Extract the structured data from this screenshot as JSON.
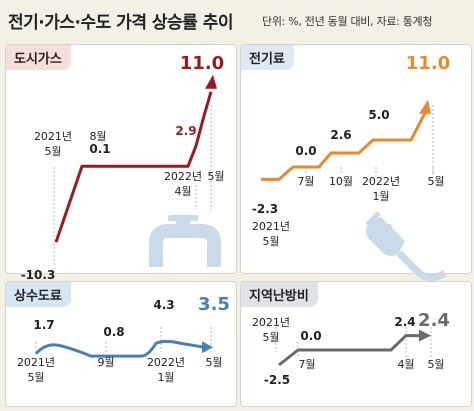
{
  "header": {
    "title": "전기·가스·수도 가격 상승률 추이",
    "note": "단위: %, 전년 동월 대비, 자료: 통계청"
  },
  "colors": {
    "gas": "#9c1a1c",
    "electricity": "#e8892e",
    "water": "#4a7fb5",
    "heating": "#6a6a6a"
  },
  "icons": [
    "faucet-icon",
    "plug-icon"
  ],
  "chart_data": [
    {
      "id": "gas",
      "type": "line",
      "title": "도시가스",
      "points": [
        {
          "date_label": "2021년 5월",
          "value": -10.3,
          "value_label": "-10.3"
        },
        {
          "date_label": "8월",
          "value": 0.1,
          "value_label": "0.1"
        },
        {
          "date_label": "2022년 4월",
          "value": 2.9,
          "value_label": "2.9"
        },
        {
          "date_label": "5월",
          "value": 11.0,
          "value_label": "11.0"
        }
      ],
      "x_tick_labels": [
        {
          "line1": "2021년",
          "line2": "5월"
        },
        {
          "line1": "8월",
          "line2": ""
        },
        {
          "line1": "2022년",
          "line2": "4월"
        },
        {
          "line1": "5월",
          "line2": ""
        }
      ]
    },
    {
      "id": "electricity",
      "type": "line",
      "title": "전기료",
      "points": [
        {
          "date_label": "2021년 5월",
          "value": -2.3,
          "value_label": "-2.3"
        },
        {
          "date_label": "7월",
          "value": 0.0,
          "value_label": "0.0"
        },
        {
          "date_label": "10월",
          "value": 2.6,
          "value_label": "2.6"
        },
        {
          "date_label": "2022년 1월",
          "value": 5.0,
          "value_label": "5.0"
        },
        {
          "date_label": "5월",
          "value": 11.0,
          "value_label": "11.0"
        }
      ],
      "x_tick_labels": [
        {
          "line1": "7월",
          "line2": ""
        },
        {
          "line1": "10월",
          "line2": ""
        },
        {
          "line1": "2022년",
          "line2": "1월"
        },
        {
          "line1": "5월",
          "line2": ""
        },
        {
          "line1": "2021년",
          "line2": "5월"
        }
      ]
    },
    {
      "id": "water",
      "type": "line",
      "title": "상수도료",
      "points": [
        {
          "date_label": "2021년 5월",
          "value": 1.7,
          "value_label": "1.7"
        },
        {
          "date_label": "9월",
          "value": 0.8,
          "value_label": "0.8"
        },
        {
          "date_label": "2022년 1월",
          "value": 4.3,
          "value_label": "4.3"
        },
        {
          "date_label": "5월",
          "value": 3.5,
          "value_label": "3.5"
        }
      ],
      "x_tick_labels": [
        {
          "line1": "2021년",
          "line2": "5월"
        },
        {
          "line1": "9월",
          "line2": ""
        },
        {
          "line1": "2022년",
          "line2": "1월"
        },
        {
          "line1": "5월",
          "line2": ""
        }
      ]
    },
    {
      "id": "heating",
      "type": "line",
      "title": "지역난방비",
      "points": [
        {
          "date_label": "2021년 5월",
          "value": -2.5,
          "value_label": "-2.5"
        },
        {
          "date_label": "7월",
          "value": 0.0,
          "value_label": "0.0"
        },
        {
          "date_label": "2022년 4월",
          "value": 2.4,
          "value_label": "2.4"
        },
        {
          "date_label": "5월",
          "value": 2.4,
          "value_label": "2.4"
        }
      ],
      "x_tick_labels": [
        {
          "line1": "2021년",
          "line2": "5월"
        },
        {
          "line1": "7월",
          "line2": ""
        },
        {
          "line1": "4월",
          "line2": ""
        },
        {
          "line1": "5월",
          "line2": ""
        }
      ]
    }
  ]
}
